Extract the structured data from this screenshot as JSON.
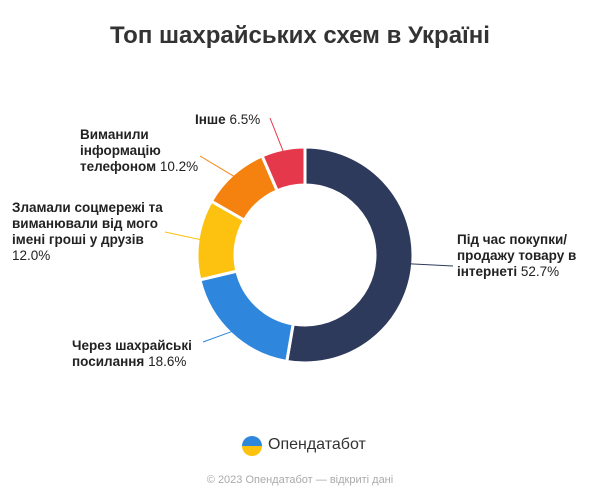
{
  "chart_data": {
    "type": "donut",
    "title": "Топ шахрайських схем в Україні",
    "categories": [
      "Під час покупки/продажу товару в інтернеті",
      "Через шахрайські посилання",
      "Зламали соцмережі та виманювали від мого імені гроші у друзів",
      "Виманили інформацію телефоном",
      "Інше"
    ],
    "values": [
      52.7,
      18.6,
      12.0,
      10.2,
      6.5
    ],
    "value_labels": [
      "52.7%",
      "18.6%",
      "12.0%",
      "10.2%",
      "6.5%"
    ],
    "colors": [
      "#2d3a5c",
      "#2f86dd",
      "#fdc20f",
      "#f5820f",
      "#e5384a"
    ],
    "brand": "Опендатабот",
    "footer": "© 2023 Опендатабот — відкриті дані"
  }
}
